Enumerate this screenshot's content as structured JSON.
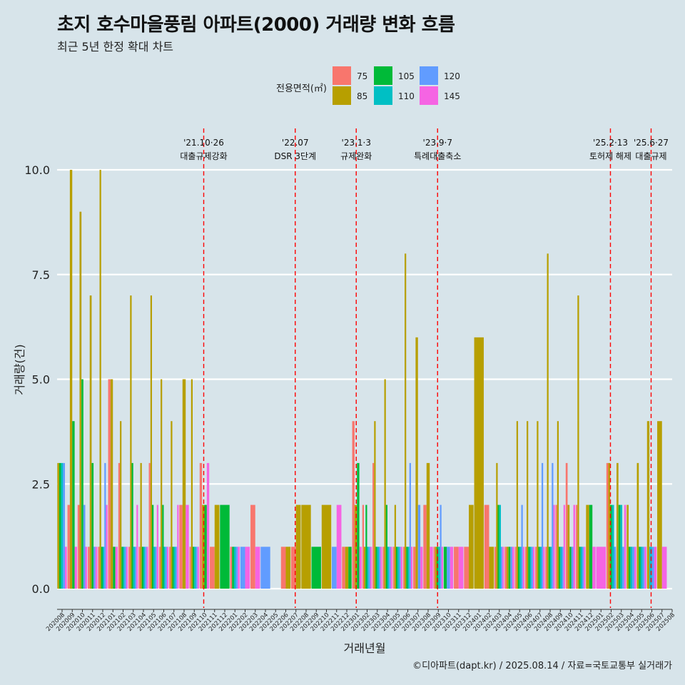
{
  "title": "초지 호수마을풍림 아파트(2000) 거래량 변화 흐름",
  "subtitle": "최근 5년 한정 확대 차트",
  "caption": "©디아파트(dapt.kr) / 2025.08.14 / 자료=국토교통부 실거래가",
  "legend": {
    "title": "전용면적(㎡)",
    "items": [
      {
        "label": "75",
        "color": "#f8766d"
      },
      {
        "label": "85",
        "color": "#b79f00"
      },
      {
        "label": "105",
        "color": "#00ba38"
      },
      {
        "label": "110",
        "color": "#00bfc4"
      },
      {
        "label": "120",
        "color": "#619cff"
      },
      {
        "label": "145",
        "color": "#f564e3"
      }
    ]
  },
  "chart_data": {
    "type": "bar",
    "title": "초지 호수마을풍림 아파트(2000) 거래량 변화 흐름",
    "xlabel": "거래년월",
    "ylabel": "거래량(건)",
    "ylim": [
      0,
      10.5
    ],
    "yticks": [
      "0.0",
      "2.5",
      "5.0",
      "7.5",
      "10.0"
    ],
    "ytick_values": [
      0,
      2.5,
      5,
      7.5,
      10
    ],
    "categories": [
      "202008",
      "202009",
      "202010",
      "202011",
      "202012",
      "202101",
      "202102",
      "202103",
      "202104",
      "202105",
      "202106",
      "202107",
      "202108",
      "202109",
      "202110",
      "202111",
      "202112",
      "202201",
      "202202",
      "202203",
      "202204",
      "202205",
      "202206",
      "202207",
      "202208",
      "202209",
      "202210",
      "202211",
      "202212",
      "202301",
      "202302",
      "202303",
      "202304",
      "202305",
      "202306",
      "202307",
      "202308",
      "202309",
      "202310",
      "202311",
      "202312",
      "202401",
      "202402",
      "202403",
      "202404",
      "202405",
      "202406",
      "202407",
      "202408",
      "202409",
      "202410",
      "202411",
      "202412",
      "202501",
      "202502",
      "202503",
      "202504",
      "202505",
      "202506",
      "202507",
      "202508"
    ],
    "series": [
      {
        "name": "75",
        "values": [
          0,
          2,
          2,
          1,
          1,
          5,
          3,
          1,
          1,
          3,
          1,
          1,
          2,
          1,
          3,
          1,
          0,
          1,
          0,
          2,
          0,
          0,
          1,
          1,
          0,
          0,
          0,
          0,
          1,
          4,
          2,
          3,
          1,
          1,
          1,
          1,
          2,
          1,
          0,
          1,
          1,
          0,
          2,
          1,
          1,
          1,
          1,
          1,
          1,
          2,
          3,
          2,
          0,
          0,
          3,
          0,
          0,
          0,
          0,
          0,
          0
        ]
      },
      {
        "name": "85",
        "values": [
          3,
          10,
          9,
          7,
          10,
          5,
          4,
          7,
          3,
          7,
          5,
          4,
          5,
          5,
          2,
          2,
          0,
          0,
          0,
          0,
          0,
          0,
          1,
          2,
          2,
          0,
          2,
          0,
          1,
          2,
          1,
          4,
          5,
          2,
          8,
          6,
          3,
          1,
          0,
          0,
          2,
          6,
          1,
          3,
          1,
          4,
          4,
          4,
          8,
          4,
          2,
          7,
          2,
          0,
          3,
          3,
          2,
          3,
          4,
          4,
          0
        ]
      },
      {
        "name": "105",
        "values": [
          3,
          4,
          5,
          3,
          1,
          1,
          1,
          3,
          1,
          2,
          2,
          1,
          0,
          1,
          2,
          0,
          2,
          1,
          0,
          0,
          0,
          0,
          0,
          0,
          0,
          1,
          0,
          0,
          1,
          3,
          2,
          1,
          2,
          1,
          1,
          0,
          0,
          1,
          1,
          0,
          0,
          0,
          0,
          2,
          1,
          1,
          1,
          1,
          1,
          1,
          1,
          1,
          2,
          0,
          2,
          2,
          1,
          1,
          0,
          0,
          0
        ]
      },
      {
        "name": "110",
        "values": [
          3,
          0,
          0,
          0,
          1,
          0,
          1,
          1,
          1,
          1,
          1,
          1,
          0,
          1,
          0,
          0,
          0,
          1,
          0,
          0,
          0,
          0,
          0,
          0,
          0,
          0,
          0,
          0,
          0,
          0,
          1,
          1,
          1,
          1,
          1,
          0,
          0,
          1,
          0,
          0,
          0,
          0,
          0,
          2,
          0,
          1,
          1,
          1,
          1,
          1,
          0,
          1,
          0,
          0,
          2,
          2,
          1,
          1,
          1,
          0,
          0
        ]
      },
      {
        "name": "120",
        "values": [
          3,
          0,
          2,
          1,
          3,
          0,
          1,
          1,
          1,
          1,
          1,
          1,
          0,
          1,
          0,
          0,
          0,
          1,
          1,
          0,
          1,
          0,
          0,
          0,
          0,
          0,
          0,
          1,
          0,
          0,
          1,
          1,
          1,
          1,
          3,
          2,
          0,
          2,
          1,
          0,
          0,
          0,
          0,
          1,
          1,
          2,
          1,
          3,
          3,
          1,
          1,
          1,
          0,
          0,
          1,
          1,
          1,
          1,
          1,
          0,
          0
        ]
      },
      {
        "name": "145",
        "values": [
          1,
          1,
          1,
          1,
          2,
          1,
          1,
          2,
          1,
          2,
          1,
          2,
          2,
          1,
          3,
          0,
          0,
          1,
          1,
          1,
          0,
          0,
          0,
          0,
          0,
          0,
          0,
          2,
          0,
          1,
          1,
          1,
          1,
          1,
          1,
          1,
          1,
          1,
          1,
          1,
          0,
          0,
          0,
          1,
          1,
          1,
          1,
          1,
          2,
          2,
          2,
          1,
          1,
          1,
          0,
          2,
          1,
          1,
          1,
          1,
          0
        ]
      }
    ],
    "annotations": [
      {
        "category": "202110",
        "line1": "'21.10·26",
        "line2": "대출규제강화"
      },
      {
        "category": "202207",
        "line1": "'22.07",
        "line2": "DSR 3단계"
      },
      {
        "category": "202301",
        "line1": "'23.1·3",
        "line2": "규제완화"
      },
      {
        "category": "202309",
        "line1": "'23.9·7",
        "line2": "특례대출축소"
      },
      {
        "category": "202502",
        "line1": "'25.2·13",
        "line2": "토허제 해제"
      },
      {
        "category": "202506",
        "line1": "'25.6·27",
        "line2": "대출규제"
      }
    ]
  }
}
